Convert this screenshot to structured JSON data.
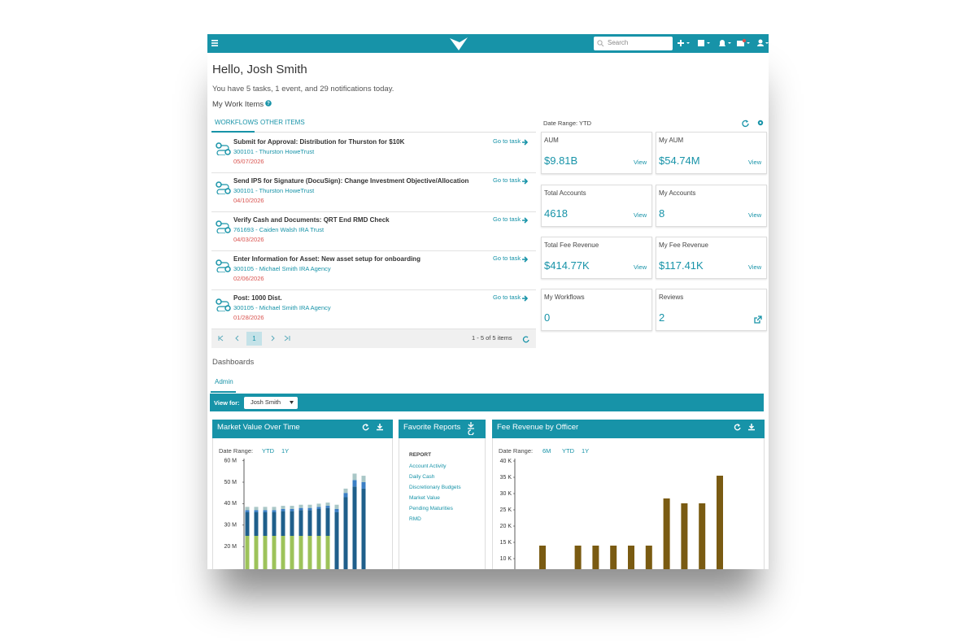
{
  "header": {
    "search_placeholder": "Search"
  },
  "greeting": "Hello, Josh Smith",
  "summary": "You have 5 tasks, 1 event, and 29 notifications today.",
  "work_items": {
    "title": "My Work Items",
    "tabs": [
      "WORKFLOWS",
      "OTHER ITEMS"
    ],
    "action": "Go to task",
    "tasks": [
      {
        "title": "Submit for Approval: Distribution for Thurston for $10K",
        "account": "300101 - Thurston HoweTrust",
        "date": "05/07/2026"
      },
      {
        "title": "Send IPS for Signature (DocuSign): Change Investment Objective/Allocation",
        "account": "300101 - Thurston HoweTrust",
        "date": "04/10/2026"
      },
      {
        "title": "Verify Cash and Documents: QRT End RMD Check",
        "account": "761693 - Caiden Walsh IRA Trust",
        "date": "04/03/2026"
      },
      {
        "title": "Enter Information for Asset: New asset setup for onboarding",
        "account": "300105 - Michael Smith IRA Agency",
        "date": "02/06/2026"
      },
      {
        "title": "Post: 1000 Dist.",
        "account": "300105 - Michael Smith IRA Agency",
        "date": "01/28/2026"
      }
    ],
    "pager": {
      "page": "1",
      "info": "1 - 5 of 5 items"
    }
  },
  "kpi": {
    "date_range": "Date Range: YTD",
    "cards": [
      {
        "label": "AUM",
        "value": "$9.81B",
        "link": "View"
      },
      {
        "label": "My AUM",
        "value": "$54.74M",
        "link": "View"
      },
      {
        "label": "Total Accounts",
        "value": "4618",
        "link": "View"
      },
      {
        "label": "My Accounts",
        "value": "8",
        "link": "View"
      },
      {
        "label": "Total Fee Revenue",
        "value": "$414.77K",
        "link": "View"
      },
      {
        "label": "My Fee Revenue",
        "value": "$117.41K",
        "link": "View"
      },
      {
        "label": "My Workflows",
        "value": "0"
      },
      {
        "label": "Reviews",
        "value": "2"
      }
    ]
  },
  "dashboards": {
    "title": "Dashboards",
    "tab": "Admin",
    "view_for_label": "View for:",
    "view_for_value": "Josh Smith"
  },
  "favorite_reports": {
    "title": "Favorite Reports",
    "header": "REPORT",
    "items": [
      "Account Activity",
      "Daily Cash",
      "Discretionary Budgets",
      "Market Value",
      "Pending Maturities",
      "RMD"
    ]
  },
  "chart_data": [
    {
      "type": "bar",
      "stacked": true,
      "title": "Market Value Over Time",
      "date_range_label": "Date Range:",
      "date_range_options": [
        "YTD",
        "1Y"
      ],
      "categories": [
        null,
        null,
        null,
        null,
        null,
        null,
        null,
        null,
        null,
        null,
        null,
        null,
        null,
        null
      ],
      "series": [
        {
          "color": "#9dc35a",
          "values": [
            25,
            25,
            25,
            25,
            25,
            25,
            25,
            25,
            25,
            25,
            0,
            0,
            0,
            0
          ]
        },
        {
          "color": "#1f5f8b",
          "values": [
            11,
            11,
            11,
            11,
            11.5,
            11.5,
            12,
            12,
            12.5,
            13,
            36,
            43,
            48,
            47
          ]
        },
        {
          "color": "#3b7fc4",
          "values": [
            1,
            1,
            1,
            1,
            1,
            1,
            1,
            1,
            1,
            1,
            1.5,
            2,
            3,
            3
          ]
        },
        {
          "color": "#a9c7c7",
          "values": [
            1.5,
            1.5,
            1.5,
            1.5,
            1.5,
            1.5,
            1.5,
            1.5,
            1.5,
            1.5,
            2,
            2,
            3,
            3
          ]
        }
      ],
      "ylim": [
        0,
        60
      ],
      "yticks": [
        {
          "value": 20,
          "label": "20 M"
        },
        {
          "value": 30,
          "label": "30 M"
        },
        {
          "value": 40,
          "label": "40 M"
        },
        {
          "value": 50,
          "label": "50 M"
        },
        {
          "value": 60,
          "label": "60 M"
        }
      ]
    },
    {
      "type": "bar",
      "title": "Fee Revenue by Officer",
      "date_range_label": "Date Range:",
      "date_range_options": [
        "6M",
        "YTD",
        "1Y"
      ],
      "categories": [
        null,
        null,
        null,
        null,
        null,
        null,
        null,
        null,
        null,
        null,
        null
      ],
      "values": [
        14,
        0,
        14,
        14,
        14,
        14,
        14,
        28.5,
        27,
        27,
        35.5
      ],
      "color": "#7a5b12",
      "ylim": [
        0,
        40
      ],
      "yticks": [
        {
          "value": 10,
          "label": "10 K"
        },
        {
          "value": 15,
          "label": "15 K"
        },
        {
          "value": 20,
          "label": "20 K"
        },
        {
          "value": 25,
          "label": "25 K"
        },
        {
          "value": 30,
          "label": "30 K"
        },
        {
          "value": 35,
          "label": "35 K"
        },
        {
          "value": 40,
          "label": "40 K"
        }
      ]
    }
  ]
}
